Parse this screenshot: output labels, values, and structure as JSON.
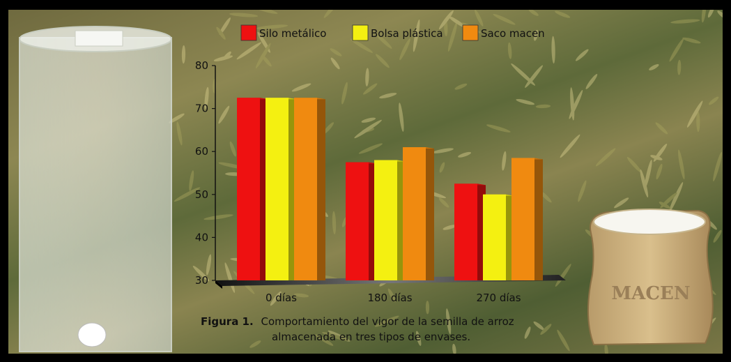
{
  "chart_data": {
    "type": "bar",
    "categories": [
      "0 días",
      "180 días",
      "270 días"
    ],
    "series": [
      {
        "name": "Silo metálico",
        "color": "#ee1111",
        "values": [
          72.5,
          57.5,
          52.5
        ]
      },
      {
        "name": "Bolsa plástica",
        "color": "#f4f011",
        "values": [
          72.5,
          58,
          50
        ]
      },
      {
        "name": "Saco macen",
        "color": "#f08a10",
        "values": [
          72.5,
          61,
          58.5
        ]
      }
    ],
    "yticks": [
      30,
      40,
      50,
      60,
      70,
      80
    ],
    "ylim": [
      30,
      80
    ],
    "legend_position": "top",
    "grid": false
  },
  "caption": {
    "label": "Figura 1.",
    "line1": "Comportamiento del vigor de la semilla de arroz",
    "line2": "almacenada en tres tipos de envases."
  },
  "sack_label": "MACEN"
}
